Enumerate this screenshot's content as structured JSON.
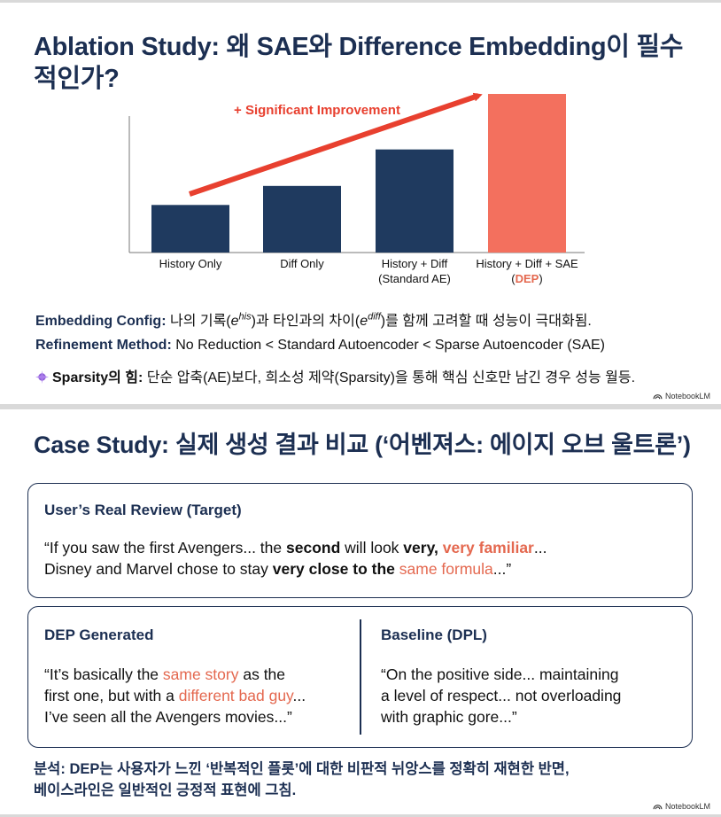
{
  "slide1": {
    "title": "Ablation Study: 왜 SAE와 Difference Embedding이 필수적인가?",
    "chart_data": {
      "type": "bar",
      "categories": [
        "History Only",
        "Diff Only",
        "History + Diff",
        "History + Diff + SAE"
      ],
      "category_sublabels": [
        "",
        "",
        "(Standard AE)",
        "(DEP)"
      ],
      "values": [
        30,
        42,
        65,
        100
      ],
      "ylim": [
        0,
        100
      ],
      "colors": [
        "#1f3a5f",
        "#1f3a5f",
        "#1f3a5f",
        "#f3705e"
      ],
      "annotation": "+ Significant Improvement",
      "annotation_color": "#e8402f",
      "highlight_color": "#e4684f",
      "grid": false
    },
    "config_line": {
      "label": "Embedding Config:",
      "part1": " 나의 기록(",
      "e1": "e",
      "sup1": "his",
      "part2": ")과 타인과의 차이(",
      "e2": "e",
      "sup2": "diff",
      "part3": ")를 함께 고려할 때 성능이 극대화됨."
    },
    "method_line": {
      "label": "Refinement Method:",
      "text": " No Reduction < Standard Autoencoder < Sparse Autoencoder (SAE)"
    },
    "sparsity_line": {
      "icon": "sparkle-icon",
      "label": "Sparsity의 힘:",
      "text": " 단순 압축(AE)보다, 희소성 제약(Sparsity)을 통해 핵심 신호만 남긴 경우 성능 월등."
    },
    "brand": "NotebookLM"
  },
  "slide2": {
    "title": "Case Study: 실제 생성 결과 비교 (‘어벤져스: 에이지 오브 울트론’)",
    "target": {
      "heading": "User’s Real Review (Target)",
      "l1a": "“If you saw the first Avengers... the ",
      "l1b": "second",
      "l1c": " will look ",
      "l1d": "very,",
      "l1e": " ",
      "l1f": "very familiar",
      "l1g": "...",
      "l2a": "Disney and Marvel chose to stay ",
      "l2b": "very close to the",
      "l2c": " ",
      "l2d": "same formula",
      "l2e": "...”"
    },
    "dep": {
      "heading": "DEP Generated",
      "l1a": "“It’s basically the ",
      "l1b": "same story",
      "l1c": " as the",
      "l2a": "first one, but with a ",
      "l2b": "different bad guy",
      "l2c": "...",
      "l3": "I’ve seen all the Avengers movies...”"
    },
    "baseline": {
      "heading": "Baseline (DPL)",
      "l1": "“On the positive side... maintaining",
      "l2": "a level of respect... not overloading",
      "l3": "with graphic gore...”"
    },
    "analysis_1": "분석: DEP는 사용자가 느낀 ‘반복적인 플롯’에 대한 비판적 뉘앙스를 정확히 재현한 반면,",
    "analysis_2": "베이스라인은 일반적인 긍정적 표현에 그침.",
    "brand": "NotebookLM"
  }
}
